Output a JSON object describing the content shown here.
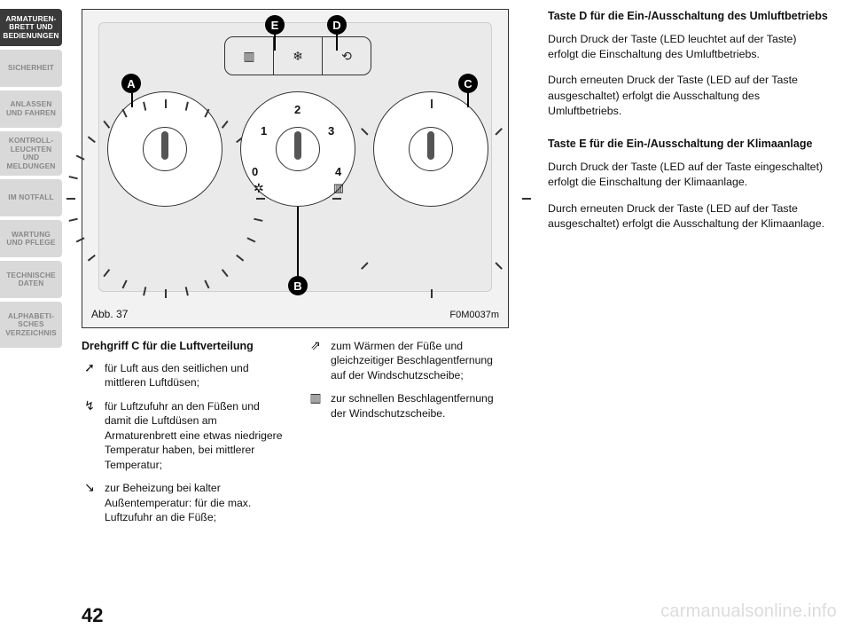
{
  "nav": {
    "tabs": [
      {
        "label": "ARMATUREN-\nBRETT UND\nBEDIENUNGEN",
        "active": true
      },
      {
        "label": "SICHERHEIT",
        "active": false
      },
      {
        "label": "ANLASSEN\nUND FAHREN",
        "active": false
      },
      {
        "label": "KONTROLL-\nLEUCHTEN UND\nMELDUNGEN",
        "active": false
      },
      {
        "label": "IM NOTFALL",
        "active": false
      },
      {
        "label": "WARTUNG\nUND PFLEGE",
        "active": false
      },
      {
        "label": "TECHNISCHE\nDATEN",
        "active": false
      },
      {
        "label": "ALPHABETI-\nSCHES\nVERZEICHNIS",
        "active": false
      }
    ]
  },
  "figure": {
    "caption": "Abb. 37",
    "code": "F0M0037m",
    "callouts": {
      "A": "A",
      "B": "B",
      "C": "C",
      "D": "D",
      "E": "E"
    },
    "fanDial": {
      "n0": "0",
      "n1": "1",
      "n2": "2",
      "n3": "3",
      "n4": "4"
    },
    "topbar": {
      "defrost": "▥",
      "ac": "❄",
      "recirc": "⟲"
    }
  },
  "col1": {
    "heading": "Drehgriff C für die Luftverteilung",
    "items": [
      {
        "sym": "➚",
        "text": "für Luft aus den seitlichen und mittleren Luftdüsen;"
      },
      {
        "sym": "↯",
        "text": "für Luftzufuhr an den Füßen und damit die Luftdüsen am Armaturenbrett eine etwas niedrigere Temperatur haben, bei mittlerer Temperatur;"
      },
      {
        "sym": "↘",
        "text": "zur Beheizung bei kalter Außentemperatur: für die max. Luftzufuhr an die Füße;"
      }
    ]
  },
  "col2": {
    "items": [
      {
        "sym": "⇗",
        "text": "zum Wärmen der Füße und gleichzeitiger Beschlagentfernung auf der Windschutzscheibe;"
      },
      {
        "sym": "▥",
        "text": "zur schnellen Beschlagentfernung der Windschutzscheibe."
      }
    ]
  },
  "right": {
    "blockD": {
      "heading": "Taste D für die Ein-/Ausschaltung des Umluftbetriebs",
      "p1": "Durch Druck der Taste (LED leuchtet auf der Taste) erfolgt die Einschaltung des Umluftbetriebs.",
      "p2": "Durch erneuten Druck der Taste (LED auf der Taste ausgeschaltet) erfolgt die Ausschaltung des Umluftbetriebs."
    },
    "blockE": {
      "heading": "Taste E für die Ein-/Ausschaltung der Klimaanlage",
      "p1": "Durch Druck der Taste (LED auf der Taste eingeschaltet) erfolgt die Einschaltung der Klimaanlage.",
      "p2": "Durch erneuten Druck der Taste (LED auf der Taste ausgeschaltet) erfolgt die Ausschaltung der Klimaanlage."
    }
  },
  "pageNumber": "42",
  "watermark": "carmanualsonline.info"
}
